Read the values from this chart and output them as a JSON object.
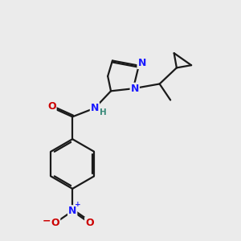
{
  "bg_color": "#ebebeb",
  "bond_color": "#1a1a1a",
  "bond_width": 1.6,
  "atom_colors": {
    "N": "#1a1aff",
    "O": "#cc0000",
    "H": "#3a8a7a",
    "C": "#1a1a1a"
  },
  "font_size_atom": 8.5,
  "font_size_plus": 6.5
}
